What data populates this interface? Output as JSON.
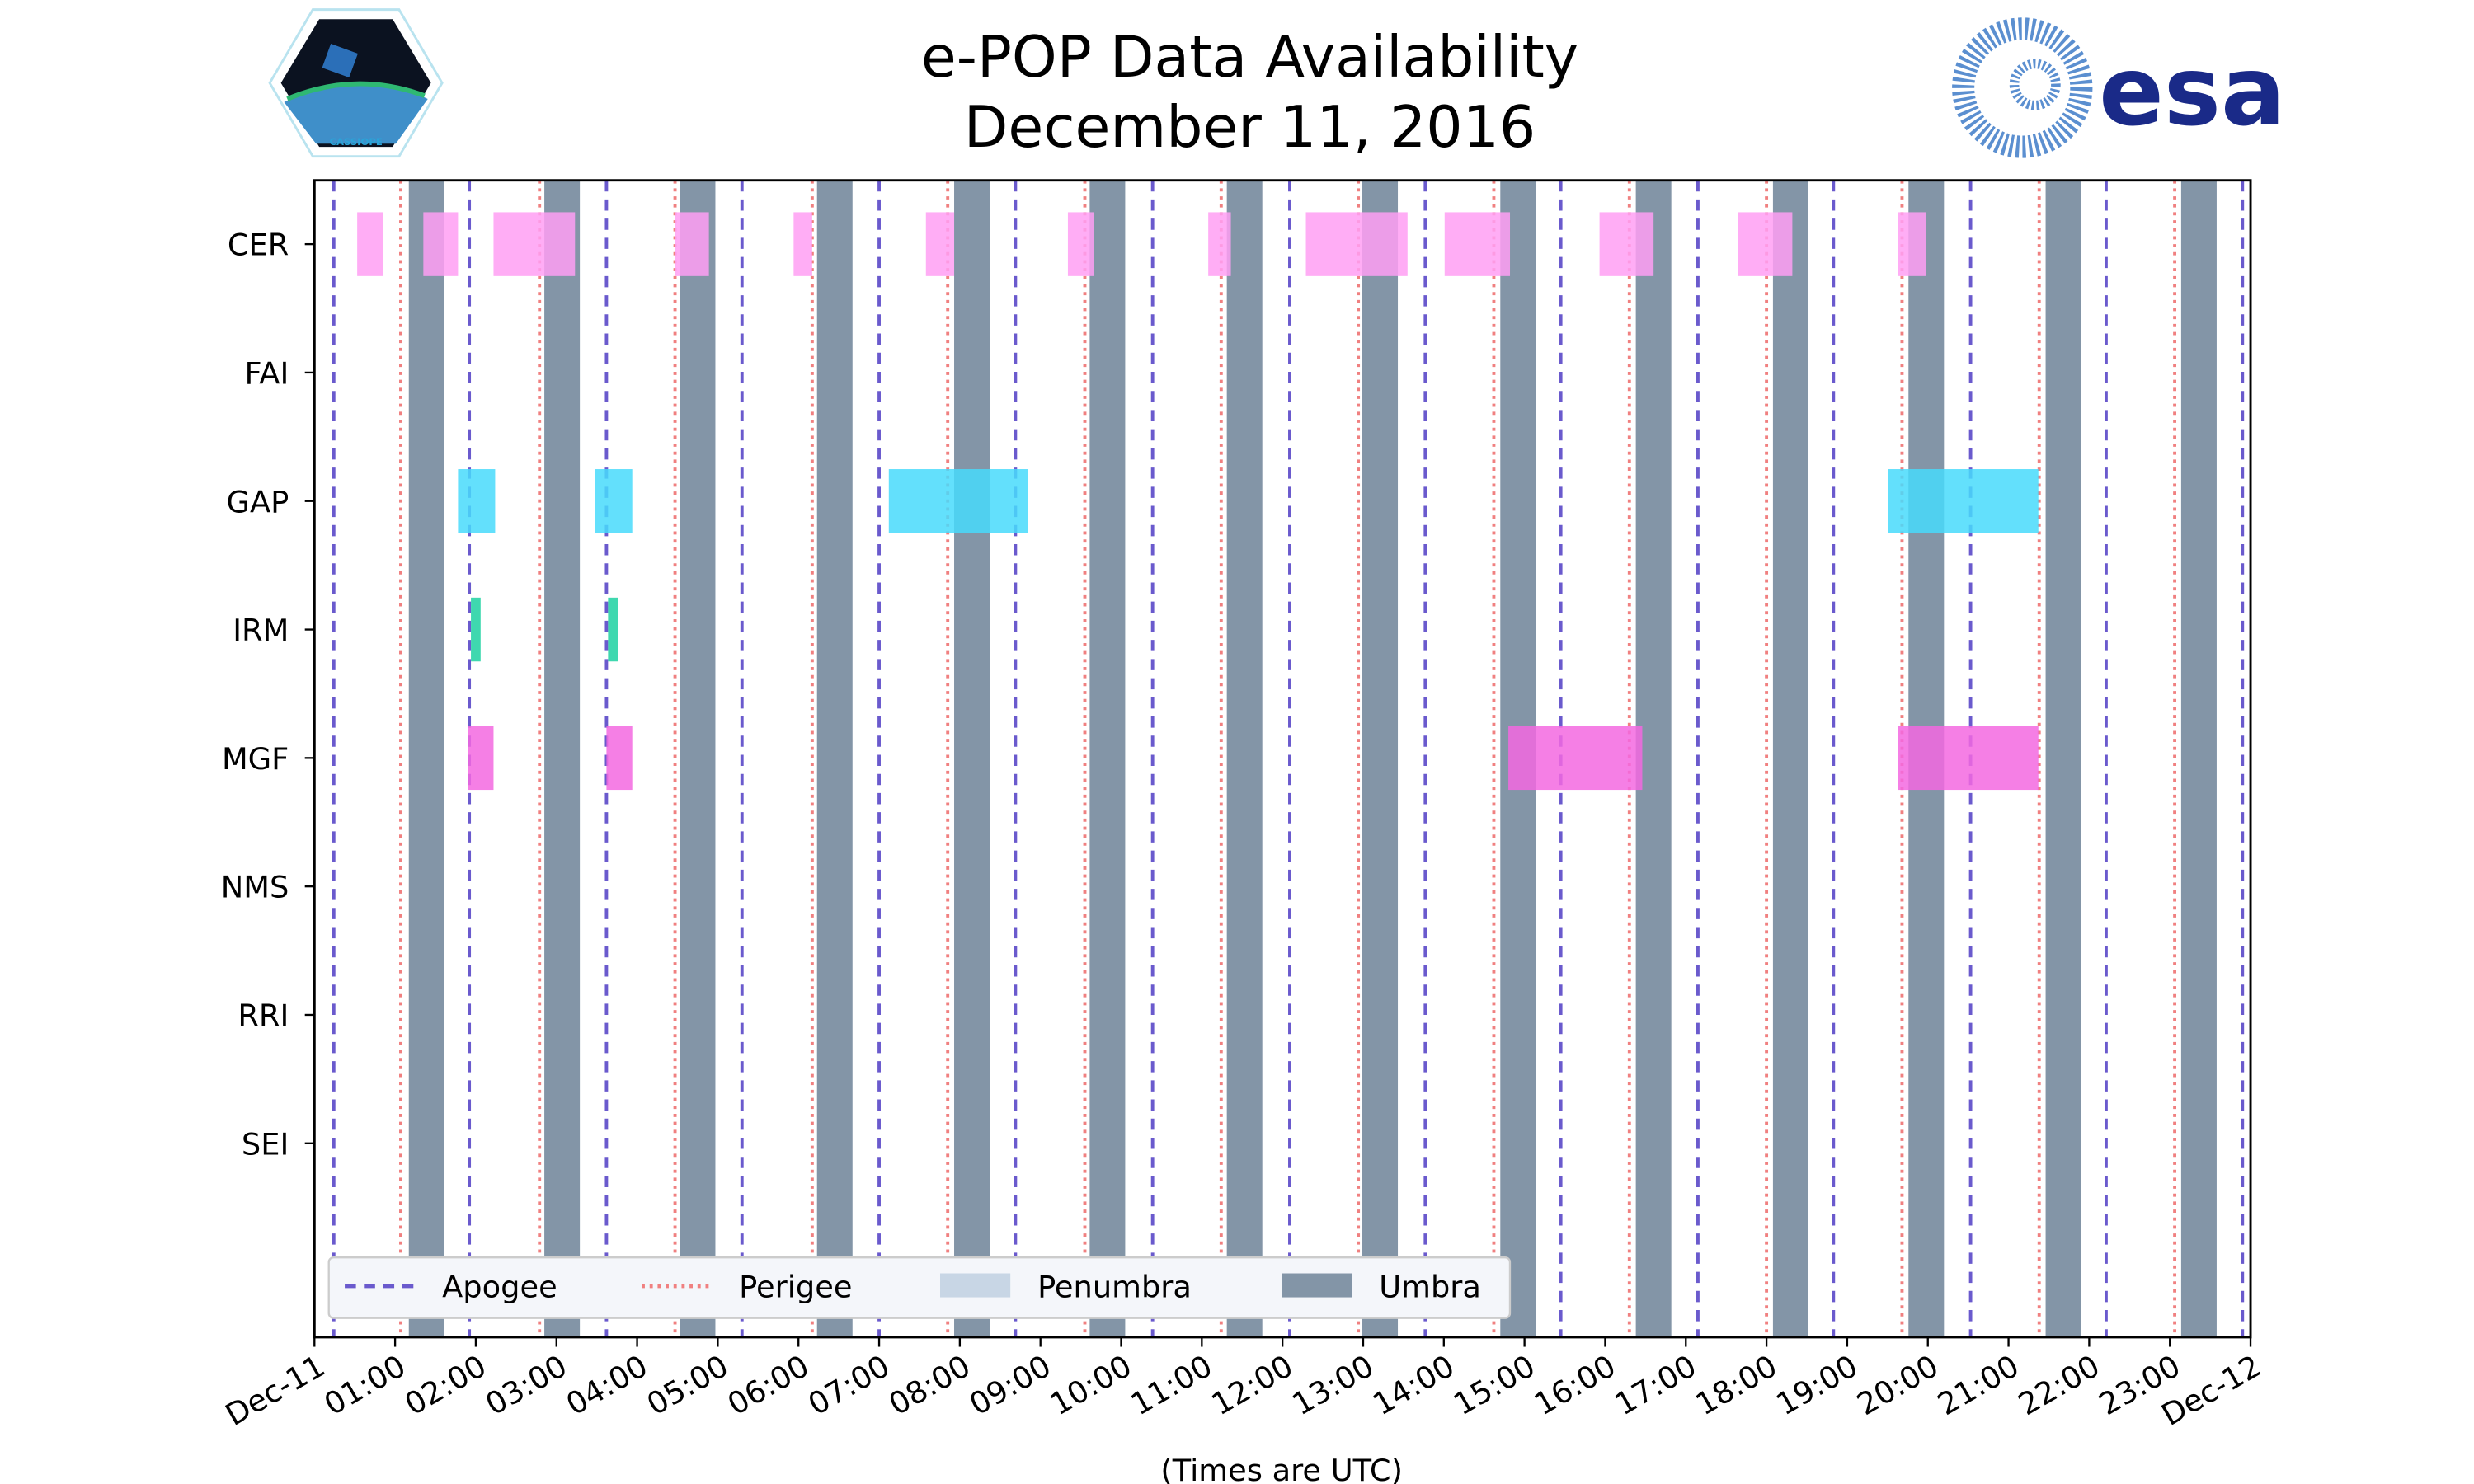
{
  "header": {
    "title_line1": "e-POP Data Availability",
    "title_line2": "December 11, 2016",
    "left_logo_text": "CASSIOPE",
    "right_logo_text": "esa"
  },
  "chart_data": {
    "type": "timeline",
    "title": "e-POP Data Availability December 11, 2016",
    "xlabel": "(Times are UTC)",
    "ylabel": "",
    "xlim_hours": [
      0,
      24
    ],
    "x_tick_labels": [
      "Dec-11",
      "01:00",
      "02:00",
      "03:00",
      "04:00",
      "05:00",
      "06:00",
      "07:00",
      "08:00",
      "09:00",
      "10:00",
      "11:00",
      "12:00",
      "13:00",
      "14:00",
      "15:00",
      "16:00",
      "17:00",
      "18:00",
      "19:00",
      "20:00",
      "21:00",
      "22:00",
      "23:00",
      "Dec-12"
    ],
    "instruments": [
      "CER",
      "FAI",
      "GAP",
      "IRM",
      "MGF",
      "NMS",
      "RRI",
      "SEI"
    ],
    "colors": {
      "CER": "#ff9ff3",
      "GAP": "#48dbfb",
      "IRM": "#1dd1a1",
      "MGF": "#f368e0",
      "apogee": "#6a5acd",
      "perigee": "#f08080",
      "penumbra": "#c8d6e5",
      "umbra": "#8395a7"
    },
    "availability_hours": {
      "CER": [
        [
          0.53,
          0.85
        ],
        [
          1.35,
          1.78
        ],
        [
          2.22,
          3.23
        ],
        [
          4.47,
          4.89
        ],
        [
          5.94,
          6.17
        ],
        [
          7.58,
          7.93
        ],
        [
          9.34,
          9.66
        ],
        [
          11.08,
          11.36
        ],
        [
          12.29,
          13.55
        ],
        [
          14.01,
          14.82
        ],
        [
          15.93,
          16.6
        ],
        [
          17.65,
          18.32
        ],
        [
          19.63,
          19.98
        ]
      ],
      "FAI": [],
      "GAP": [
        [
          1.78,
          2.24
        ],
        [
          3.48,
          3.94
        ],
        [
          7.12,
          8.84
        ],
        [
          19.51,
          21.37
        ]
      ],
      "IRM": [
        [
          1.94,
          2.06
        ],
        [
          3.64,
          3.76
        ]
      ],
      "MGF": [
        [
          1.9,
          2.22
        ],
        [
          3.62,
          3.94
        ],
        [
          14.8,
          16.46
        ],
        [
          19.63,
          21.37
        ]
      ],
      "NMS": [],
      "RRI": [],
      "SEI": []
    },
    "apogee_hours": [
      0.24,
      1.92,
      3.62,
      5.3,
      7.0,
      8.69,
      10.39,
      12.09,
      13.77,
      15.45,
      17.15,
      18.83,
      20.53,
      22.21,
      23.9
    ],
    "perigee_hours": [
      1.07,
      2.79,
      4.47,
      6.17,
      7.85,
      9.55,
      11.24,
      12.94,
      14.62,
      16.3,
      18.0,
      19.68,
      21.38,
      23.06
    ],
    "umbra_hours": [
      [
        1.17,
        1.61
      ],
      [
        2.85,
        3.29
      ],
      [
        4.53,
        4.97
      ],
      [
        6.23,
        6.67
      ],
      [
        7.93,
        8.37
      ],
      [
        9.61,
        10.05
      ],
      [
        11.31,
        11.75
      ],
      [
        12.99,
        13.43
      ],
      [
        14.7,
        15.14
      ],
      [
        16.38,
        16.82
      ],
      [
        18.08,
        18.52
      ],
      [
        19.76,
        20.2
      ],
      [
        21.46,
        21.9
      ],
      [
        23.14,
        23.58
      ]
    ],
    "legend": {
      "placement": "bottom-left",
      "entries": [
        "Apogee",
        "Perigee",
        "Penumbra",
        "Umbra"
      ]
    }
  }
}
